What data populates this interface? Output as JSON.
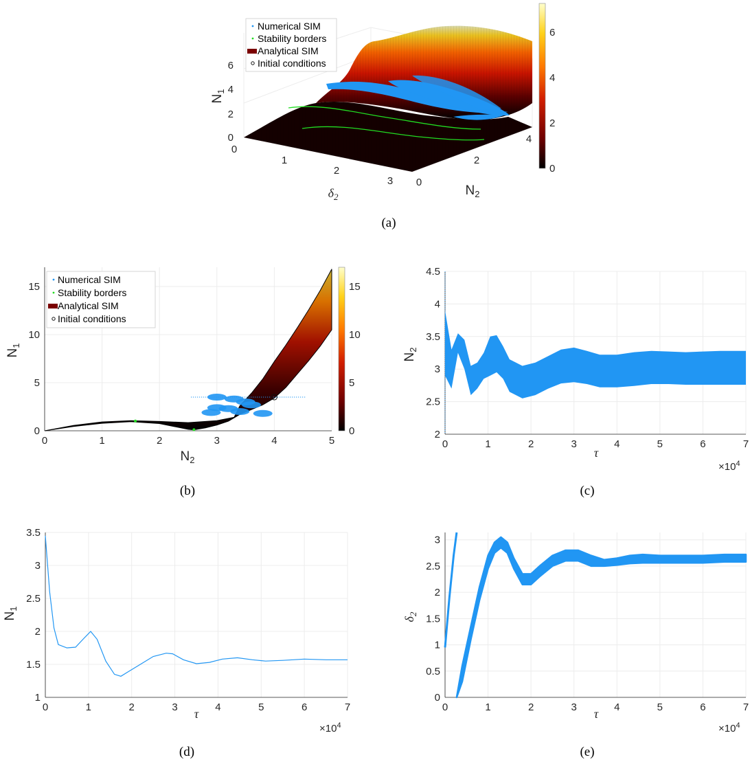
{
  "colors": {
    "series": "#2196f3",
    "stability": "#22dd22",
    "ic": "#111111",
    "colormap": [
      "#000000",
      "#6e0000",
      "#d21e00",
      "#ff7a00",
      "#ffd21a",
      "#ffffcc"
    ]
  },
  "legend": [
    {
      "icon": "dot-icon",
      "color": "#2196f3",
      "label": "Numerical SIM"
    },
    {
      "icon": "dot-icon",
      "color": "#22dd22",
      "label": "Stability borders"
    },
    {
      "icon": "patch-icon",
      "color": "#7a0000",
      "label": "Analytical SIM"
    },
    {
      "icon": "circle-icon",
      "color": "#111111",
      "label": "Initial conditions"
    }
  ],
  "panels": {
    "a": {
      "caption": "(a)",
      "ylabel": "N",
      "ylabel_sub": "1",
      "xlabel": "δ",
      "xlabel_sub": "2",
      "zlabel": "N",
      "zlabel_sub": "2",
      "n1_ticks": [
        "0",
        "2",
        "4",
        "6"
      ],
      "delta_ticks": [
        "0",
        "1",
        "2",
        "3"
      ],
      "n2_ticks": [
        "0",
        "2",
        "4"
      ],
      "colorbar_ticks": [
        "0",
        "2",
        "4",
        "6"
      ]
    },
    "b": {
      "caption": "(b)",
      "xlabel": "N",
      "xlabel_sub": "2",
      "ylabel": "N",
      "ylabel_sub": "1",
      "xticks": [
        "0",
        "1",
        "2",
        "3",
        "4",
        "5"
      ],
      "yticks": [
        "0",
        "5",
        "10",
        "15"
      ],
      "colorbar_ticks": [
        "0",
        "5",
        "10",
        "15"
      ]
    },
    "c": {
      "caption": "(c)",
      "xlabel": "τ",
      "ylabel": "N",
      "ylabel_sub": "2",
      "exponent": "×10",
      "exponent_power": "4",
      "xticks": [
        "0",
        "1",
        "2",
        "3",
        "4",
        "5",
        "6",
        "7"
      ],
      "yticks": [
        "2",
        "2.5",
        "3",
        "3.5",
        "4",
        "4.5"
      ]
    },
    "d": {
      "caption": "(d)",
      "xlabel": "τ",
      "ylabel": "N",
      "ylabel_sub": "1",
      "exponent": "×10",
      "exponent_power": "4",
      "xticks": [
        "0",
        "1",
        "2",
        "3",
        "4",
        "5",
        "6",
        "7"
      ],
      "yticks": [
        "1",
        "1.5",
        "2",
        "2.5",
        "3",
        "3.5"
      ]
    },
    "e": {
      "caption": "(e)",
      "xlabel": "τ",
      "ylabel": "δ",
      "ylabel_sub": "2",
      "exponent": "×10",
      "exponent_power": "4",
      "xticks": [
        "0",
        "1",
        "2",
        "3",
        "4",
        "5",
        "6",
        "7"
      ],
      "yticks": [
        "0",
        "0.5",
        "1",
        "1.5",
        "2",
        "2.5",
        "3"
      ]
    }
  },
  "chart_data": [
    {
      "panel": "a",
      "type": "surface3d",
      "x_label": "δ2",
      "x_range": [
        0,
        3.14
      ],
      "y_label": "N2",
      "y_range": [
        0,
        5
      ],
      "z_label": "N1",
      "z_range": [
        0,
        7.2
      ],
      "colorbar_range": [
        0,
        7.2
      ],
      "series": [
        {
          "name": "Analytical SIM",
          "kind": "surface"
        },
        {
          "name": "Stability borders",
          "kind": "curves"
        },
        {
          "name": "Numerical SIM",
          "kind": "trajectory"
        },
        {
          "name": "Initial conditions",
          "kind": "marker"
        }
      ]
    },
    {
      "panel": "b",
      "type": "scatter",
      "x_label": "N2",
      "xlim": [
        0,
        5
      ],
      "y_label": "N1",
      "ylim": [
        0,
        17
      ],
      "colorbar_range": [
        0,
        17
      ],
      "grid": true,
      "legend_position": "top-left",
      "analytical_upper": {
        "x": [
          0,
          0.5,
          1.0,
          1.5,
          2.0,
          2.5,
          3.0,
          3.3,
          3.4,
          3.6,
          3.8,
          4.0,
          4.2,
          4.4,
          4.6,
          4.8,
          5.0
        ],
        "y": [
          0,
          0.55,
          0.92,
          1.05,
          0.97,
          0.85,
          1.05,
          1.4,
          2.6,
          3.9,
          5.4,
          7.2,
          8.9,
          10.7,
          12.6,
          14.6,
          16.8
        ]
      },
      "analytical_lower": {
        "x": [
          0,
          0.5,
          1.0,
          1.5,
          2.0,
          2.5,
          2.6,
          2.8,
          3.0,
          3.2,
          3.4,
          3.6,
          3.8,
          4.0,
          4.2,
          4.4,
          4.6,
          4.8,
          5.0
        ],
        "y": [
          0,
          0.45,
          0.78,
          0.95,
          0.75,
          0.15,
          0.1,
          0.3,
          0.6,
          1.0,
          1.7,
          2.2,
          2.7,
          3.4,
          4.5,
          5.9,
          7.3,
          8.8,
          10.5
        ]
      },
      "stability_points": {
        "x": [
          1.58,
          2.6
        ],
        "y": [
          1.02,
          0.12
        ]
      },
      "numerical_points": {
        "x": [
          3.0,
          3.3,
          3.6,
          3.0,
          3.4,
          3.8,
          3.5,
          2.9,
          3.2
        ],
        "y": [
          3.5,
          3.3,
          2.7,
          2.4,
          2.0,
          1.8,
          3.0,
          1.9,
          2.3
        ]
      },
      "initial_condition": {
        "x": 4.0,
        "y": 3.5
      }
    },
    {
      "panel": "c",
      "type": "area",
      "x_label": "τ",
      "xlim": [
        0,
        70000
      ],
      "y_label": "N2",
      "ylim": [
        2,
        4.5
      ],
      "grid": true,
      "x": [
        0,
        1500,
        3000,
        4500,
        6000,
        7500,
        9000,
        10500,
        12000,
        13500,
        15000,
        18000,
        21000,
        24000,
        27000,
        30000,
        33000,
        36000,
        40000,
        44000,
        48000,
        52000,
        56000,
        60000,
        64000,
        70000
      ],
      "upper": [
        3.9,
        3.3,
        3.55,
        3.45,
        3.05,
        3.1,
        3.25,
        3.5,
        3.52,
        3.35,
        3.15,
        3.05,
        3.1,
        3.2,
        3.3,
        3.33,
        3.28,
        3.22,
        3.22,
        3.26,
        3.28,
        3.27,
        3.26,
        3.27,
        3.28,
        3.28
      ],
      "lower": [
        2.9,
        2.7,
        3.25,
        3.0,
        2.6,
        2.7,
        2.85,
        2.9,
        2.95,
        2.85,
        2.65,
        2.55,
        2.6,
        2.7,
        2.78,
        2.8,
        2.77,
        2.72,
        2.72,
        2.74,
        2.77,
        2.77,
        2.76,
        2.76,
        2.76,
        2.76
      ]
    },
    {
      "panel": "d",
      "type": "line",
      "x_label": "τ",
      "xlim": [
        0,
        70000
      ],
      "y_label": "N1",
      "ylim": [
        1,
        3.5
      ],
      "grid": true,
      "x": [
        0,
        1000,
        2000,
        3000,
        5000,
        7000,
        9000,
        10500,
        12000,
        14000,
        16000,
        17500,
        19000,
        22000,
        25000,
        28000,
        29500,
        32000,
        35000,
        38000,
        41000,
        44500,
        48000,
        51000,
        55000,
        60000,
        65000,
        70000
      ],
      "y": [
        3.45,
        2.6,
        2.05,
        1.8,
        1.75,
        1.76,
        1.9,
        2.0,
        1.88,
        1.55,
        1.35,
        1.32,
        1.38,
        1.5,
        1.62,
        1.67,
        1.66,
        1.57,
        1.51,
        1.53,
        1.58,
        1.6,
        1.57,
        1.55,
        1.56,
        1.58,
        1.57,
        1.57
      ]
    },
    {
      "panel": "e",
      "type": "area",
      "x_label": "τ",
      "xlim": [
        0,
        70000
      ],
      "y_label": "δ2",
      "ylim": [
        0,
        3.14
      ],
      "grid": true,
      "initial_branch": {
        "x": [
          0,
          1000,
          2000,
          2700
        ],
        "y": [
          0.95,
          1.9,
          2.7,
          3.14
        ]
      },
      "x": [
        2700,
        4000,
        6000,
        8000,
        10000,
        11500,
        13000,
        14500,
        16000,
        18000,
        20000,
        22000,
        25000,
        28000,
        31000,
        34000,
        37000,
        40000,
        43000,
        46000,
        50000,
        55000,
        60000,
        65000,
        70000
      ],
      "upper": [
        0.0,
        0.6,
        1.35,
        2.1,
        2.7,
        2.95,
        3.05,
        2.95,
        2.65,
        2.35,
        2.35,
        2.5,
        2.7,
        2.8,
        2.8,
        2.7,
        2.62,
        2.65,
        2.7,
        2.72,
        2.7,
        2.7,
        2.7,
        2.72,
        2.72
      ],
      "lower": [
        0.0,
        0.3,
        1.1,
        1.85,
        2.45,
        2.75,
        2.85,
        2.75,
        2.45,
        2.15,
        2.15,
        2.3,
        2.5,
        2.6,
        2.6,
        2.5,
        2.5,
        2.52,
        2.55,
        2.56,
        2.56,
        2.56,
        2.56,
        2.58,
        2.58
      ]
    }
  ]
}
